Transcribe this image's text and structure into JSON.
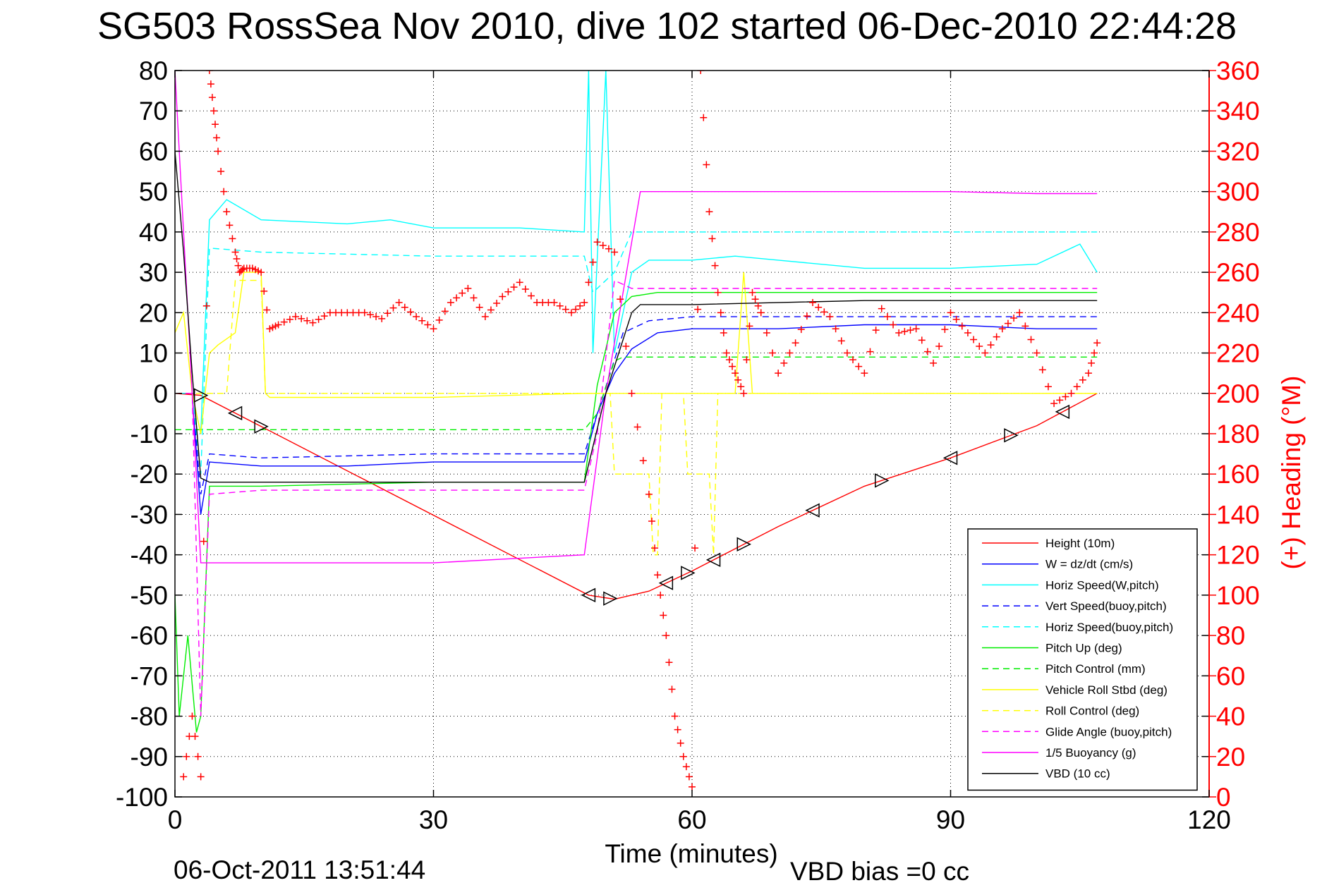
{
  "header": {
    "title": "SG503 RossSea Nov 2010, dive 102 started 06-Dec-2010 22:44:28"
  },
  "footer": {
    "plot_date": "06-Oct-2011 13:51:44",
    "vbd_bias": "VBD bias =0 cc"
  },
  "chart_data": {
    "type": "line",
    "title": "SG503 RossSea Nov 2010, dive 102 started 06-Dec-2010 22:44:28",
    "xlabel": "Time (minutes)",
    "ylabel": "",
    "y2label": "(+) Heading (°M)",
    "xlim": [
      0,
      120
    ],
    "ylim": [
      -100,
      80
    ],
    "y2lim": [
      0,
      360
    ],
    "xticks": [
      0,
      30,
      60,
      90,
      120
    ],
    "yticks": [
      80,
      70,
      60,
      50,
      40,
      30,
      20,
      10,
      0,
      -10,
      -20,
      -30,
      -40,
      -50,
      -60,
      -70,
      -80,
      -90,
      -100
    ],
    "y2ticks": [
      360,
      340,
      320,
      300,
      280,
      260,
      240,
      220,
      200,
      180,
      160,
      140,
      120,
      100,
      80,
      60,
      40,
      20,
      0
    ],
    "grid": true,
    "legend_position": "bottom-right",
    "colors": {
      "height": "#ff0000",
      "w": "#0000ff",
      "cyan": "#00ffff",
      "green": "#00ee00",
      "yellow": "#ffff00",
      "magenta": "#ff00ff",
      "black": "#000000",
      "heading": "#ff0000"
    },
    "legend": [
      {
        "label": "Height (10m)",
        "color": "#ff0000",
        "dash": false
      },
      {
        "label": "W = dz/dt (cm/s)",
        "color": "#0000ff",
        "dash": false
      },
      {
        "label": "Horiz Speed(W,pitch)",
        "color": "#00ffff",
        "dash": false
      },
      {
        "label": "Vert Speed(buoy,pitch)",
        "color": "#0000ff",
        "dash": true
      },
      {
        "label": "Horiz Speed(buoy,pitch)",
        "color": "#00ffff",
        "dash": true
      },
      {
        "label": "Pitch Up (deg)",
        "color": "#00ee00",
        "dash": false
      },
      {
        "label": "Pitch Control (mm)",
        "color": "#00ee00",
        "dash": true
      },
      {
        "label": "Vehicle Roll Stbd (deg)",
        "color": "#ffff00",
        "dash": false
      },
      {
        "label": "Roll Control (deg)",
        "color": "#ffff00",
        "dash": true
      },
      {
        "label": "Glide Angle (buoy,pitch)",
        "color": "#ff00ff",
        "dash": true
      },
      {
        "label": "1/5 Buoyancy (g)",
        "color": "#ff00ff",
        "dash": false
      },
      {
        "label": "VBD (10 cc)",
        "color": "#000000",
        "dash": false
      }
    ],
    "series": [
      {
        "name": "Height (10m)",
        "color": "#ff0000",
        "dash": false,
        "axis": "left",
        "x": [
          0,
          3,
          48,
          51,
          55,
          60,
          70,
          80,
          90,
          100,
          107
        ],
        "y": [
          0,
          -0.5,
          -50,
          -51,
          -49,
          -44,
          -33,
          -23,
          -16,
          -8,
          0
        ]
      },
      {
        "name": "W = dz/dt (cm/s)",
        "color": "#0000ff",
        "dash": false,
        "axis": "left",
        "x": [
          0,
          2,
          3,
          4,
          10,
          20,
          30,
          40,
          47.5,
          49,
          51,
          53,
          56,
          60,
          70,
          80,
          90,
          100,
          107
        ],
        "y": [
          0,
          0,
          -30,
          -17,
          -18,
          -18,
          -17,
          -17,
          -17,
          -5,
          5,
          11,
          15,
          16,
          16,
          17,
          17,
          16,
          16
        ]
      },
      {
        "name": "Horiz Speed(W,pitch)",
        "color": "#00ffff",
        "dash": false,
        "axis": "left",
        "x": [
          0,
          2,
          3,
          4,
          6,
          10,
          20,
          25,
          30,
          40,
          47.5,
          48,
          48.5,
          50,
          51,
          53,
          55,
          60,
          65,
          70,
          80,
          90,
          100,
          105,
          107
        ],
        "y": [
          0,
          0,
          -10,
          43,
          48,
          43,
          42,
          43,
          41,
          41,
          40,
          80,
          10,
          80,
          10,
          30,
          33,
          33,
          34,
          33,
          31,
          31,
          32,
          37,
          30
        ]
      },
      {
        "name": "Vert Speed(buoy,pitch)",
        "color": "#0000ff",
        "dash": true,
        "axis": "left",
        "x": [
          0,
          2,
          3,
          4,
          10,
          30,
          47.5,
          49,
          52,
          55,
          60,
          70,
          80,
          90,
          100,
          107
        ],
        "y": [
          0,
          0,
          -25,
          -15,
          -16,
          -15,
          -15,
          -5,
          15,
          18,
          19,
          19,
          19,
          19,
          19,
          19
        ]
      },
      {
        "name": "Horiz Speed(buoy,pitch)",
        "color": "#00ffff",
        "dash": true,
        "axis": "left",
        "x": [
          0,
          2,
          3,
          4,
          10,
          30,
          47.5,
          48.5,
          51,
          53,
          60,
          70,
          80,
          90,
          100,
          107
        ],
        "y": [
          0,
          0,
          -20,
          36,
          35,
          34,
          34,
          25,
          30,
          40,
          40,
          40,
          40,
          40,
          40,
          40
        ]
      },
      {
        "name": "Pitch Up (deg)",
        "color": "#00ee00",
        "dash": false,
        "axis": "left",
        "x": [
          0,
          0.5,
          1.5,
          2.5,
          3,
          4,
          10,
          30,
          47.5,
          49,
          51,
          53,
          56,
          60,
          70,
          80,
          90,
          100,
          107
        ],
        "y": [
          -50,
          -80,
          -60,
          -84,
          -80,
          -23,
          -23,
          -22,
          -22,
          2,
          20,
          24,
          25,
          25,
          25,
          25,
          25,
          25,
          25
        ]
      },
      {
        "name": "Pitch Control (mm)",
        "color": "#00ee00",
        "dash": true,
        "axis": "left",
        "x": [
          0,
          47.5,
          49,
          51,
          52,
          107
        ],
        "y": [
          -9,
          -9,
          -5,
          8,
          9,
          9
        ]
      },
      {
        "name": "Vehicle Roll Stbd (deg)",
        "color": "#ffff00",
        "dash": false,
        "axis": "left",
        "x": [
          0,
          1,
          2,
          3,
          4,
          5,
          7,
          8,
          10,
          10.5,
          11,
          30,
          47.5,
          49,
          52,
          60,
          65,
          66,
          67,
          70,
          107
        ],
        "y": [
          15,
          20,
          0,
          -10,
          10,
          12,
          15,
          30,
          30,
          0,
          -1,
          -1,
          0,
          0,
          0,
          0,
          0,
          30,
          0,
          0,
          0
        ]
      },
      {
        "name": "Roll Control (deg)",
        "color": "#ffff00",
        "dash": true,
        "axis": "left",
        "x": [
          0,
          6,
          7,
          10,
          10.5,
          48,
          50.5,
          51,
          55,
          55.5,
          56,
          56.5,
          59,
          59.5,
          62,
          62.5,
          63,
          107
        ],
        "y": [
          0,
          0,
          28,
          28,
          0,
          0,
          0,
          -20,
          -20,
          -40,
          -40,
          0,
          0,
          -20,
          -20,
          -40,
          0,
          0
        ]
      },
      {
        "name": "Glide Angle (buoy,pitch)",
        "color": "#ff00ff",
        "dash": true,
        "axis": "left",
        "x": [
          0,
          2,
          3,
          4,
          10,
          30,
          47.5,
          49,
          51,
          53,
          60,
          70,
          80,
          90,
          100,
          107
        ],
        "y": [
          0,
          0,
          -80,
          -25,
          -24,
          -24,
          -24,
          -10,
          28,
          26,
          26,
          26,
          26,
          26,
          26,
          26
        ]
      },
      {
        "name": "1/5 Buoyancy (g)",
        "color": "#ff00ff",
        "dash": false,
        "axis": "left",
        "x": [
          0,
          1,
          2,
          3,
          10,
          30,
          47.5,
          50,
          54,
          60,
          80,
          90,
          100,
          107
        ],
        "y": [
          80,
          40,
          0,
          -42,
          -42,
          -42,
          -40,
          0,
          50,
          50,
          50,
          50,
          49.5,
          49.5
        ]
      },
      {
        "name": "VBD (10 cc)",
        "color": "#000000",
        "dash": false,
        "axis": "left",
        "x": [
          0,
          1,
          2,
          3,
          4,
          30,
          47.5,
          50,
          53,
          54,
          60,
          80,
          100,
          107
        ],
        "y": [
          60,
          35,
          5,
          -21,
          -22,
          -22,
          -22,
          0,
          20,
          22,
          22,
          23,
          23,
          23
        ]
      },
      {
        "name": "(+) Heading",
        "color": "#ff0000",
        "marker": "+",
        "axis": "right",
        "x": [
          1,
          2,
          3,
          4,
          4.5,
          5,
          6,
          7,
          7.5,
          8,
          9,
          10,
          11,
          12,
          14,
          16,
          18,
          20,
          22,
          24,
          26,
          28,
          30,
          32,
          34,
          36,
          38,
          40,
          42,
          44,
          46,
          47.5,
          49,
          51,
          53,
          55,
          56,
          57,
          58,
          59,
          60,
          61,
          62,
          63,
          64,
          65,
          66,
          67,
          68,
          70,
          72,
          74,
          76,
          78,
          80,
          82,
          84,
          86,
          88,
          90,
          92,
          94,
          96,
          98,
          100,
          102,
          104,
          106,
          107
        ],
        "y": [
          10,
          40,
          10,
          360,
          340,
          320,
          290,
          270,
          260,
          262,
          262,
          260,
          232,
          234,
          238,
          235,
          240,
          240,
          240,
          237,
          245,
          238,
          232,
          245,
          252,
          238,
          248,
          255,
          245,
          245,
          240,
          245,
          275,
          270,
          200,
          150,
          110,
          80,
          40,
          20,
          5,
          360,
          290,
          250,
          220,
          210,
          200,
          250,
          240,
          210,
          225,
          245,
          238,
          220,
          210,
          242,
          230,
          232,
          215,
          240,
          230,
          220,
          232,
          240,
          220,
          195,
          200,
          210,
          225
        ]
      }
    ]
  }
}
